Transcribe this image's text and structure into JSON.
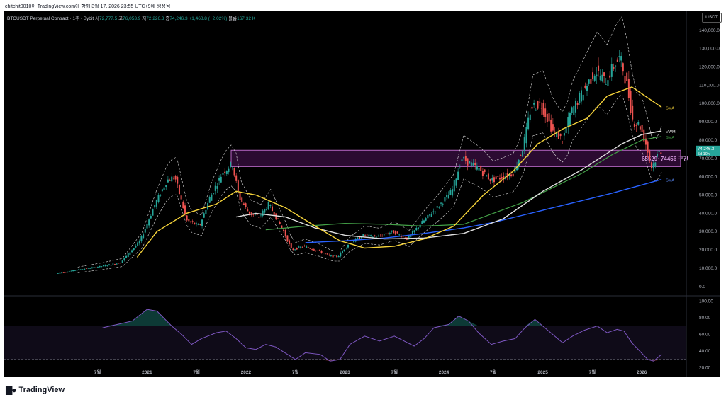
{
  "header": {
    "snapshot_line": "chitchit0010이 TradingView.com에 함께 3월 17, 2026 23:55 UTC+9에 생성됨"
  },
  "legend": {
    "symbol": "BTCUSDT Perpetual Contract · 1주 · Bybit",
    "open_label": "시",
    "open": "72,777.5",
    "high_label": "고",
    "high": "76,053.9",
    "low_label": "저",
    "low": "72,226.3",
    "close_label": "종",
    "close": "74,246.3",
    "change": "+1,468.8 (+2.02%)",
    "volume_label": "볼륨",
    "volume": "167.32 K"
  },
  "currency": "USDT",
  "price_tag": {
    "value": "74,246.3",
    "countdown": "5d 10h"
  },
  "zone_label": "65529~74456 구간",
  "indicator_labels": [
    "SMA",
    "VWM",
    "SMA",
    "SMA"
  ],
  "colors": {
    "up": "#26a69a",
    "down": "#ef5350",
    "sma_yellow": "#f5d33a",
    "sma_green": "#43a047",
    "sma_blue": "#2962ff",
    "vwma_white": "#e0e0e0",
    "zone": "#9c27b0",
    "rsi": "#7e57c2"
  },
  "chart_data": [
    {
      "type": "candlestick",
      "title": "",
      "y_axis_ticks": [
        "140,000.0",
        "130,000.0",
        "120,000.0",
        "110,000.0",
        "100,000.0",
        "90,000.0",
        "80,000.0",
        "70,000.0",
        "60,000.0",
        "50,000.0",
        "40,000.0",
        "30,000.0",
        "20,000.0",
        "10,000.0",
        "0.0"
      ],
      "ylim": [
        -2000,
        143000
      ],
      "x_axis_ticks": [
        "7월",
        "2021",
        "7월",
        "2022",
        "7월",
        "2023",
        "7월",
        "2024",
        "7월",
        "2025",
        "7월",
        "2026"
      ],
      "x_ticks_year": [
        2020.5,
        2021.0,
        2021.5,
        2022.0,
        2022.5,
        2023.0,
        2023.5,
        2024.0,
        2024.5,
        2025.0,
        2025.5,
        2026.0
      ],
      "xlim": [
        2019.55,
        2026.45
      ],
      "price_path": [
        [
          2020.1,
          7000
        ],
        [
          2020.3,
          9000
        ],
        [
          2020.55,
          11000
        ],
        [
          2020.75,
          13000
        ],
        [
          2020.95,
          25000
        ],
        [
          2021.1,
          45000
        ],
        [
          2021.22,
          58000
        ],
        [
          2021.3,
          60000
        ],
        [
          2021.42,
          36000
        ],
        [
          2021.55,
          33000
        ],
        [
          2021.65,
          48000
        ],
        [
          2021.78,
          62000
        ],
        [
          2021.88,
          67000
        ],
        [
          2021.95,
          49000
        ],
        [
          2022.05,
          40000
        ],
        [
          2022.15,
          38000
        ],
        [
          2022.25,
          45000
        ],
        [
          2022.4,
          30000
        ],
        [
          2022.48,
          20000
        ],
        [
          2022.6,
          22000
        ],
        [
          2022.75,
          19500
        ],
        [
          2022.87,
          16500
        ],
        [
          2022.95,
          16500
        ],
        [
          2023.05,
          23000
        ],
        [
          2023.2,
          28000
        ],
        [
          2023.35,
          27000
        ],
        [
          2023.5,
          30000
        ],
        [
          2023.65,
          26000
        ],
        [
          2023.78,
          34000
        ],
        [
          2023.95,
          43000
        ],
        [
          2024.1,
          52000
        ],
        [
          2024.2,
          70000
        ],
        [
          2024.38,
          64000
        ],
        [
          2024.5,
          58000
        ],
        [
          2024.62,
          60000
        ],
        [
          2024.72,
          62000
        ],
        [
          2024.82,
          76000
        ],
        [
          2024.9,
          98000
        ],
        [
          2025.0,
          100000
        ],
        [
          2025.12,
          85000
        ],
        [
          2025.22,
          80000
        ],
        [
          2025.3,
          95000
        ],
        [
          2025.42,
          106000
        ],
        [
          2025.55,
          118000
        ],
        [
          2025.65,
          112000
        ],
        [
          2025.75,
          122000
        ],
        [
          2025.8,
          125000
        ],
        [
          2025.87,
          110000
        ],
        [
          2025.93,
          90000
        ],
        [
          2026.0,
          88000
        ],
        [
          2026.06,
          78000
        ],
        [
          2026.12,
          65000
        ],
        [
          2026.2,
          74246
        ]
      ],
      "sma_yellow": [
        [
          2020.9,
          16000
        ],
        [
          2021.1,
          30000
        ],
        [
          2021.4,
          40000
        ],
        [
          2021.7,
          45000
        ],
        [
          2021.9,
          52000
        ],
        [
          2022.1,
          50000
        ],
        [
          2022.4,
          43000
        ],
        [
          2022.7,
          33000
        ],
        [
          2022.95,
          25000
        ],
        [
          2023.2,
          21000
        ],
        [
          2023.5,
          22000
        ],
        [
          2023.8,
          26000
        ],
        [
          2024.1,
          33000
        ],
        [
          2024.4,
          50000
        ],
        [
          2024.7,
          63000
        ],
        [
          2024.95,
          78000
        ],
        [
          2025.2,
          86000
        ],
        [
          2025.45,
          92000
        ],
        [
          2025.65,
          104000
        ],
        [
          2025.9,
          109000
        ],
        [
          2026.2,
          98000
        ]
      ],
      "sma_green": [
        [
          2022.2,
          31000
        ],
        [
          2022.6,
          33000
        ],
        [
          2023.0,
          34500
        ],
        [
          2023.4,
          34000
        ],
        [
          2023.8,
          33000
        ],
        [
          2024.2,
          34000
        ],
        [
          2024.5,
          40000
        ],
        [
          2024.8,
          46000
        ],
        [
          2025.1,
          54000
        ],
        [
          2025.4,
          62000
        ],
        [
          2025.7,
          72000
        ],
        [
          2026.0,
          80000
        ],
        [
          2026.2,
          82000
        ]
      ],
      "sma_blue": [
        [
          2022.6,
          24000
        ],
        [
          2023.0,
          25000
        ],
        [
          2023.4,
          26500
        ],
        [
          2023.8,
          29000
        ],
        [
          2024.2,
          32000
        ],
        [
          2024.5,
          35000
        ],
        [
          2024.8,
          39000
        ],
        [
          2025.1,
          43000
        ],
        [
          2025.4,
          47000
        ],
        [
          2025.7,
          51000
        ],
        [
          2026.0,
          55500
        ],
        [
          2026.2,
          58500
        ]
      ],
      "vwma_white": [
        [
          2021.9,
          38000
        ],
        [
          2022.1,
          40000
        ],
        [
          2022.4,
          38000
        ],
        [
          2022.7,
          32000
        ],
        [
          2023.0,
          28000
        ],
        [
          2023.4,
          26000
        ],
        [
          2023.8,
          26500
        ],
        [
          2024.2,
          29000
        ],
        [
          2024.6,
          37000
        ],
        [
          2025.0,
          52000
        ],
        [
          2025.4,
          64000
        ],
        [
          2025.8,
          78000
        ],
        [
          2026.0,
          83000
        ],
        [
          2026.2,
          85000
        ]
      ],
      "zone": {
        "low": 65529,
        "high": 74456,
        "start_x": 2021.85
      }
    },
    {
      "type": "line",
      "title": "",
      "y_axis_ticks": [
        "100.00",
        "80.00",
        "60.00",
        "40.00",
        "20.00"
      ],
      "ylim": [
        18,
        102
      ],
      "levels": [
        70,
        50,
        30
      ],
      "rsi": [
        [
          2020.55,
          68
        ],
        [
          2020.7,
          72
        ],
        [
          2020.85,
          76
        ],
        [
          2021.0,
          90
        ],
        [
          2021.1,
          88
        ],
        [
          2021.25,
          70
        ],
        [
          2021.35,
          60
        ],
        [
          2021.45,
          48
        ],
        [
          2021.55,
          55
        ],
        [
          2021.7,
          62
        ],
        [
          2021.8,
          64
        ],
        [
          2021.9,
          55
        ],
        [
          2022.0,
          44
        ],
        [
          2022.1,
          42
        ],
        [
          2022.2,
          48
        ],
        [
          2022.3,
          45
        ],
        [
          2022.42,
          36
        ],
        [
          2022.5,
          30
        ],
        [
          2022.6,
          38
        ],
        [
          2022.75,
          36
        ],
        [
          2022.85,
          28
        ],
        [
          2022.95,
          30
        ],
        [
          2023.05,
          48
        ],
        [
          2023.2,
          58
        ],
        [
          2023.35,
          52
        ],
        [
          2023.5,
          58
        ],
        [
          2023.6,
          52
        ],
        [
          2023.7,
          46
        ],
        [
          2023.8,
          55
        ],
        [
          2023.9,
          68
        ],
        [
          2024.05,
          72
        ],
        [
          2024.15,
          82
        ],
        [
          2024.25,
          76
        ],
        [
          2024.35,
          62
        ],
        [
          2024.48,
          48
        ],
        [
          2024.6,
          52
        ],
        [
          2024.72,
          55
        ],
        [
          2024.82,
          68
        ],
        [
          2024.92,
          78
        ],
        [
          2025.0,
          70
        ],
        [
          2025.1,
          60
        ],
        [
          2025.2,
          50
        ],
        [
          2025.3,
          58
        ],
        [
          2025.42,
          65
        ],
        [
          2025.55,
          70
        ],
        [
          2025.65,
          62
        ],
        [
          2025.75,
          66
        ],
        [
          2025.82,
          64
        ],
        [
          2025.9,
          50
        ],
        [
          2025.98,
          40
        ],
        [
          2026.06,
          30
        ],
        [
          2026.12,
          28
        ],
        [
          2026.2,
          36
        ]
      ]
    }
  ]
}
